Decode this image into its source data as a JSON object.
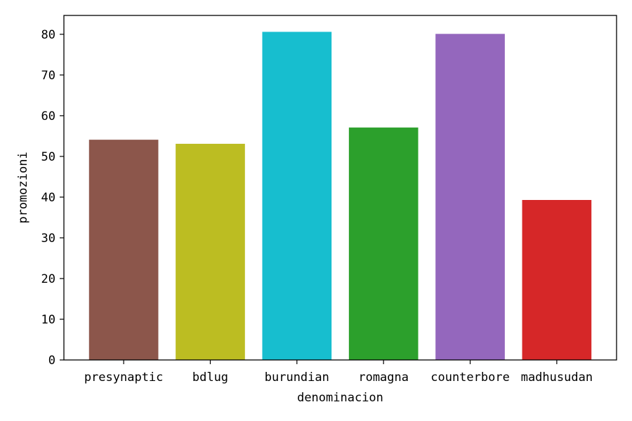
{
  "chart_data": {
    "type": "bar",
    "title": "",
    "xlabel": "denominacion",
    "ylabel": "promozioni",
    "categories": [
      "presynaptic",
      "bdlug",
      "burundian",
      "romagna",
      "counterbore",
      "madhusudan"
    ],
    "values": [
      54.1,
      53.1,
      80.6,
      57.1,
      80.1,
      39.3
    ],
    "colors": [
      "#8c564b",
      "#bcbd22",
      "#17becf",
      "#2ca02c",
      "#9467bd",
      "#d62728"
    ],
    "ylim": [
      0,
      84.63
    ],
    "yticks": [
      0,
      10,
      20,
      30,
      40,
      50,
      60,
      70,
      80
    ],
    "grid": false,
    "legend": "none"
  }
}
